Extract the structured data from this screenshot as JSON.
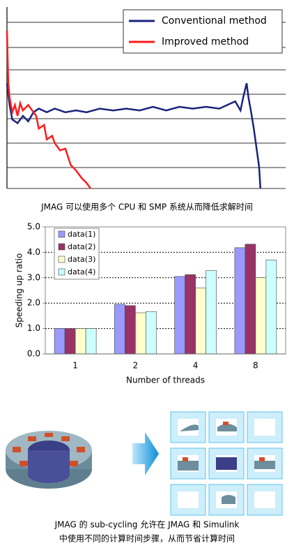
{
  "chart_data": [
    {
      "type": "line",
      "xlim": [
        0,
        105
      ],
      "ylim": [
        0,
        100
      ],
      "series": [
        {
          "name": "Conventional method",
          "color": "#1a237e",
          "x": [
            0,
            1,
            2,
            4,
            6,
            8,
            10,
            12,
            15,
            18,
            22,
            26,
            30,
            35,
            40,
            45,
            50,
            55,
            60,
            65,
            70,
            75,
            80,
            83,
            86,
            88,
            89,
            90.3,
            91,
            92,
            93,
            95,
            95.5
          ],
          "values": [
            58,
            46,
            38,
            36,
            40,
            37,
            42,
            44,
            42,
            44,
            42,
            43,
            42,
            44,
            43,
            44,
            43,
            45,
            43,
            45,
            44,
            45,
            44,
            46,
            48,
            43,
            50,
            58,
            50,
            42,
            33,
            12,
            0
          ]
        },
        {
          "name": "Improved method",
          "color": "#ff1a1a",
          "x": [
            0,
            0.5,
            1,
            2,
            3,
            4,
            5,
            6,
            8,
            10,
            11,
            12,
            14,
            15,
            17,
            18,
            20,
            22,
            24,
            26,
            28,
            30,
            31.5
          ],
          "values": [
            87,
            58,
            50,
            42,
            46,
            40,
            47,
            43,
            46,
            42,
            40,
            33,
            35,
            27,
            29,
            25,
            21,
            22,
            13,
            10,
            6,
            3,
            0
          ]
        }
      ]
    },
    {
      "type": "bar",
      "xlabel": "Number of threads",
      "ylabel": "Speeding up ratio",
      "categories": [
        "1",
        "2",
        "4",
        "8"
      ],
      "ylim": [
        0,
        5
      ],
      "yticks": [
        {
          "value": 0,
          "label": "0.0"
        },
        {
          "value": 1,
          "label": "1.0"
        },
        {
          "value": 2,
          "label": "2.0"
        },
        {
          "value": 3,
          "label": "3.0"
        },
        {
          "value": 4,
          "label": "4.0"
        },
        {
          "value": 5,
          "label": "5.0"
        }
      ],
      "grid": true,
      "series": [
        {
          "name": "data(1)",
          "color": "#9999ff",
          "values": [
            1,
            1.95,
            3.05,
            4.18
          ]
        },
        {
          "name": "data(2)",
          "color": "#993366",
          "values": [
            1,
            1.9,
            3.12,
            4.32
          ]
        },
        {
          "name": "data(3)",
          "color": "#ffffcc",
          "values": [
            1,
            1.62,
            2.6,
            3.0
          ]
        },
        {
          "name": "data(4)",
          "color": "#ccffff",
          "values": [
            1,
            1.67,
            3.28,
            3.7
          ]
        }
      ]
    }
  ],
  "captions": [
    "JMAG 可以使用多个 CPU 和 SMP 系统从而降低求解时间",
    "JMAG 的 sub-cycling 允许在 JMAG 和 Simulink",
    "中使用不同的计算时间步骤，从而节省计算时间"
  ]
}
